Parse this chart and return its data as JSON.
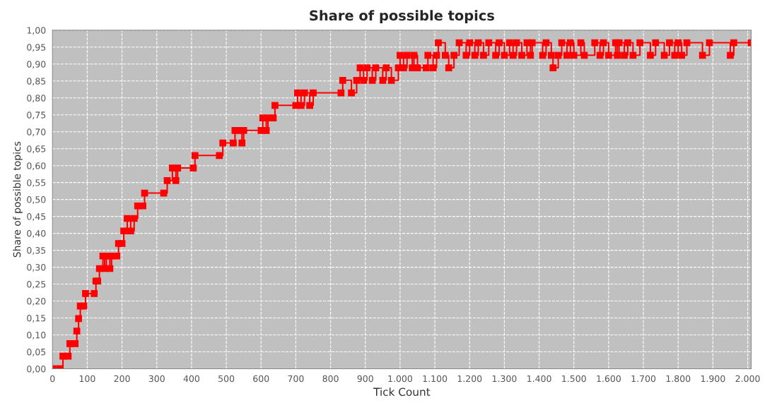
{
  "chart_data": {
    "type": "step",
    "title": "Share of possible topics",
    "xlabel": "Tick Count",
    "ylabel": "Share of possible topics",
    "x": [
      0,
      20,
      30,
      45,
      50,
      65,
      70,
      75,
      80,
      90,
      95,
      120,
      125,
      130,
      135,
      145,
      150,
      155,
      165,
      170,
      185,
      190,
      200,
      205,
      215,
      225,
      235,
      245,
      260,
      265,
      320,
      330,
      345,
      355,
      360,
      405,
      410,
      480,
      490,
      520,
      525,
      540,
      545,
      550,
      600,
      605,
      615,
      620,
      635,
      640,
      700,
      705,
      715,
      725,
      740,
      750,
      830,
      835,
      860,
      875,
      885,
      895,
      905,
      920,
      930,
      950,
      960,
      975,
      995,
      1000,
      1010,
      1020,
      1035,
      1040,
      1050,
      1075,
      1080,
      1095,
      1105,
      1110,
      1130,
      1140,
      1155,
      1170,
      1190,
      1200,
      1215,
      1225,
      1240,
      1255,
      1275,
      1285,
      1300,
      1315,
      1325,
      1335,
      1350,
      1365,
      1375,
      1380,
      1410,
      1420,
      1435,
      1440,
      1455,
      1465,
      1480,
      1490,
      1500,
      1520,
      1530,
      1560,
      1575,
      1585,
      1600,
      1620,
      1625,
      1630,
      1645,
      1655,
      1670,
      1690,
      1720,
      1735,
      1760,
      1775,
      1790,
      1800,
      1810,
      1825,
      1870,
      1890,
      1950,
      1960,
      2010
    ],
    "series": [
      {
        "color": "#ff0000",
        "values": [
          0,
          0,
          0.037,
          0.037,
          0.074,
          0.074,
          0.111,
          0.148,
          0.185,
          0.185,
          0.222,
          0.222,
          0.259,
          0.259,
          0.296,
          0.333,
          0.296,
          0.333,
          0.296,
          0.333,
          0.333,
          0.37,
          0.37,
          0.407,
          0.444,
          0.407,
          0.444,
          0.481,
          0.481,
          0.519,
          0.519,
          0.556,
          0.593,
          0.556,
          0.593,
          0.593,
          0.63,
          0.63,
          0.667,
          0.667,
          0.704,
          0.704,
          0.667,
          0.704,
          0.704,
          0.741,
          0.704,
          0.741,
          0.741,
          0.778,
          0.778,
          0.815,
          0.778,
          0.815,
          0.778,
          0.815,
          0.815,
          0.852,
          0.815,
          0.852,
          0.889,
          0.852,
          0.889,
          0.852,
          0.889,
          0.852,
          0.889,
          0.852,
          0.889,
          0.926,
          0.889,
          0.926,
          0.889,
          0.926,
          0.889,
          0.889,
          0.926,
          0.889,
          0.926,
          0.963,
          0.926,
          0.889,
          0.926,
          0.963,
          0.926,
          0.963,
          0.926,
          0.963,
          0.926,
          0.963,
          0.926,
          0.963,
          0.926,
          0.963,
          0.926,
          0.963,
          0.926,
          0.963,
          0.926,
          0.963,
          0.926,
          0.963,
          0.926,
          0.889,
          0.926,
          0.963,
          0.926,
          0.963,
          0.926,
          0.963,
          0.926,
          0.963,
          0.926,
          0.963,
          0.926,
          0.963,
          0.926,
          0.963,
          0.926,
          0.963,
          0.926,
          0.963,
          0.926,
          0.963,
          0.926,
          0.963,
          0.926,
          0.963,
          0.926,
          0.963,
          0.926,
          0.963,
          0.926,
          0.963,
          0.963
        ]
      }
    ],
    "marker": "square",
    "line_style": "solid",
    "grid": true,
    "xlim": [
      0,
      2010
    ],
    "ylim": [
      0,
      1.0
    ],
    "xticks": [
      0,
      100,
      200,
      300,
      400,
      500,
      600,
      700,
      800,
      900,
      {
        "value": 1000,
        "label": "1.000"
      },
      {
        "value": 1100,
        "label": "1.100"
      },
      {
        "value": 1200,
        "label": "1.200"
      },
      {
        "value": 1300,
        "label": "1.300"
      },
      {
        "value": 1400,
        "label": "1.400"
      },
      {
        "value": 1500,
        "label": "1.500"
      },
      {
        "value": 1600,
        "label": "1.600"
      },
      {
        "value": 1700,
        "label": "1.700"
      },
      {
        "value": 1800,
        "label": "1.800"
      },
      {
        "value": 1900,
        "label": "1.900"
      },
      {
        "value": 2000,
        "label": "2.000"
      }
    ],
    "yticks": [
      {
        "value": 0,
        "label": "0,00"
      },
      {
        "value": 0.05,
        "label": "0,05"
      },
      {
        "value": 0.1,
        "label": "0,10"
      },
      {
        "value": 0.15,
        "label": "0,15"
      },
      {
        "value": 0.2,
        "label": "0,20"
      },
      {
        "value": 0.25,
        "label": "0,25"
      },
      {
        "value": 0.3,
        "label": "0,30"
      },
      {
        "value": 0.35,
        "label": "0,35"
      },
      {
        "value": 0.4,
        "label": "0,40"
      },
      {
        "value": 0.45,
        "label": "0,45"
      },
      {
        "value": 0.5,
        "label": "0,50"
      },
      {
        "value": 0.55,
        "label": "0,55"
      },
      {
        "value": 0.6,
        "label": "0,60"
      },
      {
        "value": 0.65,
        "label": "0,65"
      },
      {
        "value": 0.7,
        "label": "0,70"
      },
      {
        "value": 0.75,
        "label": "0,75"
      },
      {
        "value": 0.8,
        "label": "0,80"
      },
      {
        "value": 0.85,
        "label": "0,85"
      },
      {
        "value": 0.9,
        "label": "0,90"
      },
      {
        "value": 0.95,
        "label": "0,95"
      },
      {
        "value": 1.0,
        "label": "1,00"
      }
    ]
  }
}
